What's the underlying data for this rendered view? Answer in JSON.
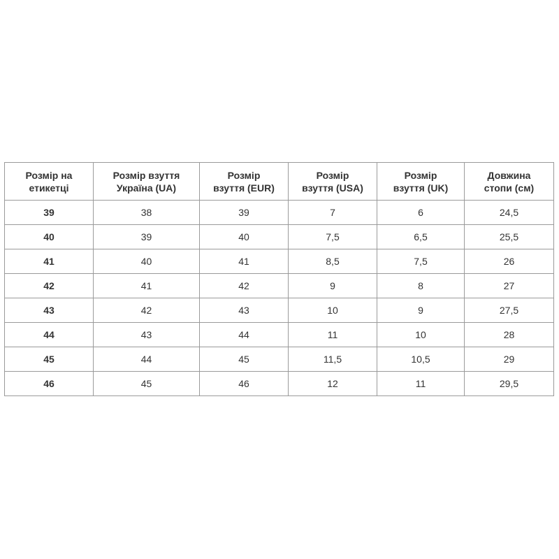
{
  "table": {
    "headers": [
      [
        "Розмір на",
        "етикетці"
      ],
      [
        "Розмір взуття",
        "Україна (UA)"
      ],
      [
        "Розмір",
        "взуття (EUR)"
      ],
      [
        "Розмір",
        "взуття (USA)"
      ],
      [
        "Розмір",
        "взуття (UK)"
      ],
      [
        "Довжина",
        "стопи (см)"
      ]
    ],
    "rows": [
      [
        "39",
        "38",
        "39",
        "7",
        "6",
        "24,5"
      ],
      [
        "40",
        "39",
        "40",
        "7,5",
        "6,5",
        "25,5"
      ],
      [
        "41",
        "40",
        "41",
        "8,5",
        "7,5",
        "26"
      ],
      [
        "42",
        "41",
        "42",
        "9",
        "8",
        "27"
      ],
      [
        "43",
        "42",
        "43",
        "10",
        "9",
        "27,5"
      ],
      [
        "44",
        "43",
        "44",
        "11",
        "10",
        "28"
      ],
      [
        "45",
        "44",
        "45",
        "11,5",
        "10,5",
        "29"
      ],
      [
        "46",
        "45",
        "46",
        "12",
        "11",
        "29,5"
      ]
    ]
  }
}
